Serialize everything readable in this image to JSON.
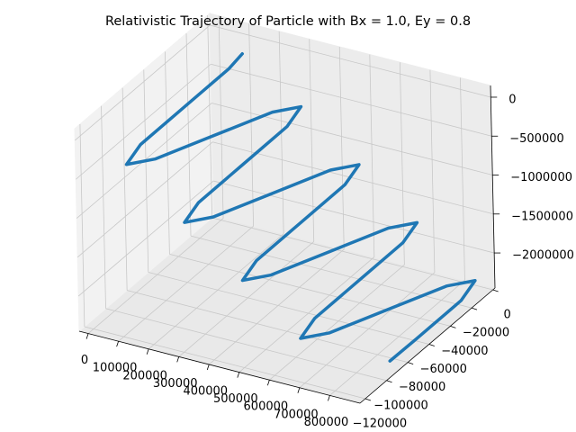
{
  "chart_data": {
    "type": "line3d",
    "title": "Relativistic Trajectory of Particle with Bx = 1.0, Ey = 0.8",
    "color": "#1f77b4",
    "grid": true,
    "x": [
      131500,
      132100,
      116300,
      100400,
      107700,
      147700,
      210800,
      273800,
      313800,
      321100,
      305300,
      289400,
      296700,
      336700,
      399800,
      462800,
      502800,
      510100,
      494300,
      478400,
      485700,
      525700,
      588800,
      651800,
      691800,
      699100,
      683300,
      667400,
      674700,
      714700,
      777800,
      840800,
      880800,
      888100,
      872300,
      861700
    ],
    "y": [
      -13500,
      -26300,
      -63500,
      -100700,
      -116100,
      -100700,
      -63500,
      -26300,
      -10900,
      -26300,
      -63500,
      -100700,
      -116100,
      -100700,
      -63500,
      -26300,
      -10900,
      -26300,
      -63500,
      -100700,
      -116100,
      -100700,
      -63500,
      -26300,
      -10900,
      -26300,
      -63500,
      -100700,
      -116100,
      -100700,
      -63500,
      -26300,
      -10900,
      -26300,
      -63500,
      -85900
    ],
    "z": [
      -26000,
      -67800,
      -137300,
      -206900,
      -276400,
      -346000,
      -415500,
      -485100,
      -554600,
      -624200,
      -693700,
      -763300,
      -832800,
      -902400,
      -971900,
      -1041500,
      -1111000,
      -1180600,
      -1250100,
      -1319700,
      -1389200,
      -1458800,
      -1528300,
      -1597900,
      -1667400,
      -1737000,
      -1806500,
      -1876100,
      -1945600,
      -2015200,
      -2084700,
      -2154300,
      -2223800,
      -2293400,
      -2362900,
      -2401900
    ],
    "xlim": [
      -30000,
      900000
    ],
    "ylim": [
      -125000,
      2000
    ],
    "zlim": [
      -2450000,
      150000
    ],
    "xticks": [
      0,
      100000,
      200000,
      300000,
      400000,
      500000,
      600000,
      700000,
      800000
    ],
    "yticks": [
      0,
      {
        "value": -20000,
        "label": "−20000"
      },
      {
        "value": -40000,
        "label": "−40000"
      },
      {
        "value": -60000,
        "label": "−60000"
      },
      {
        "value": -80000,
        "label": "−80000"
      },
      {
        "value": -100000,
        "label": "−100000"
      },
      {
        "value": -120000,
        "label": "−120000"
      }
    ],
    "zticks": [
      0,
      {
        "value": -500000,
        "label": "−500000"
      },
      {
        "value": -1000000,
        "label": "−1000000"
      },
      {
        "value": -1500000,
        "label": "−1500000"
      },
      {
        "value": -2000000,
        "label": "−2000000"
      }
    ]
  }
}
